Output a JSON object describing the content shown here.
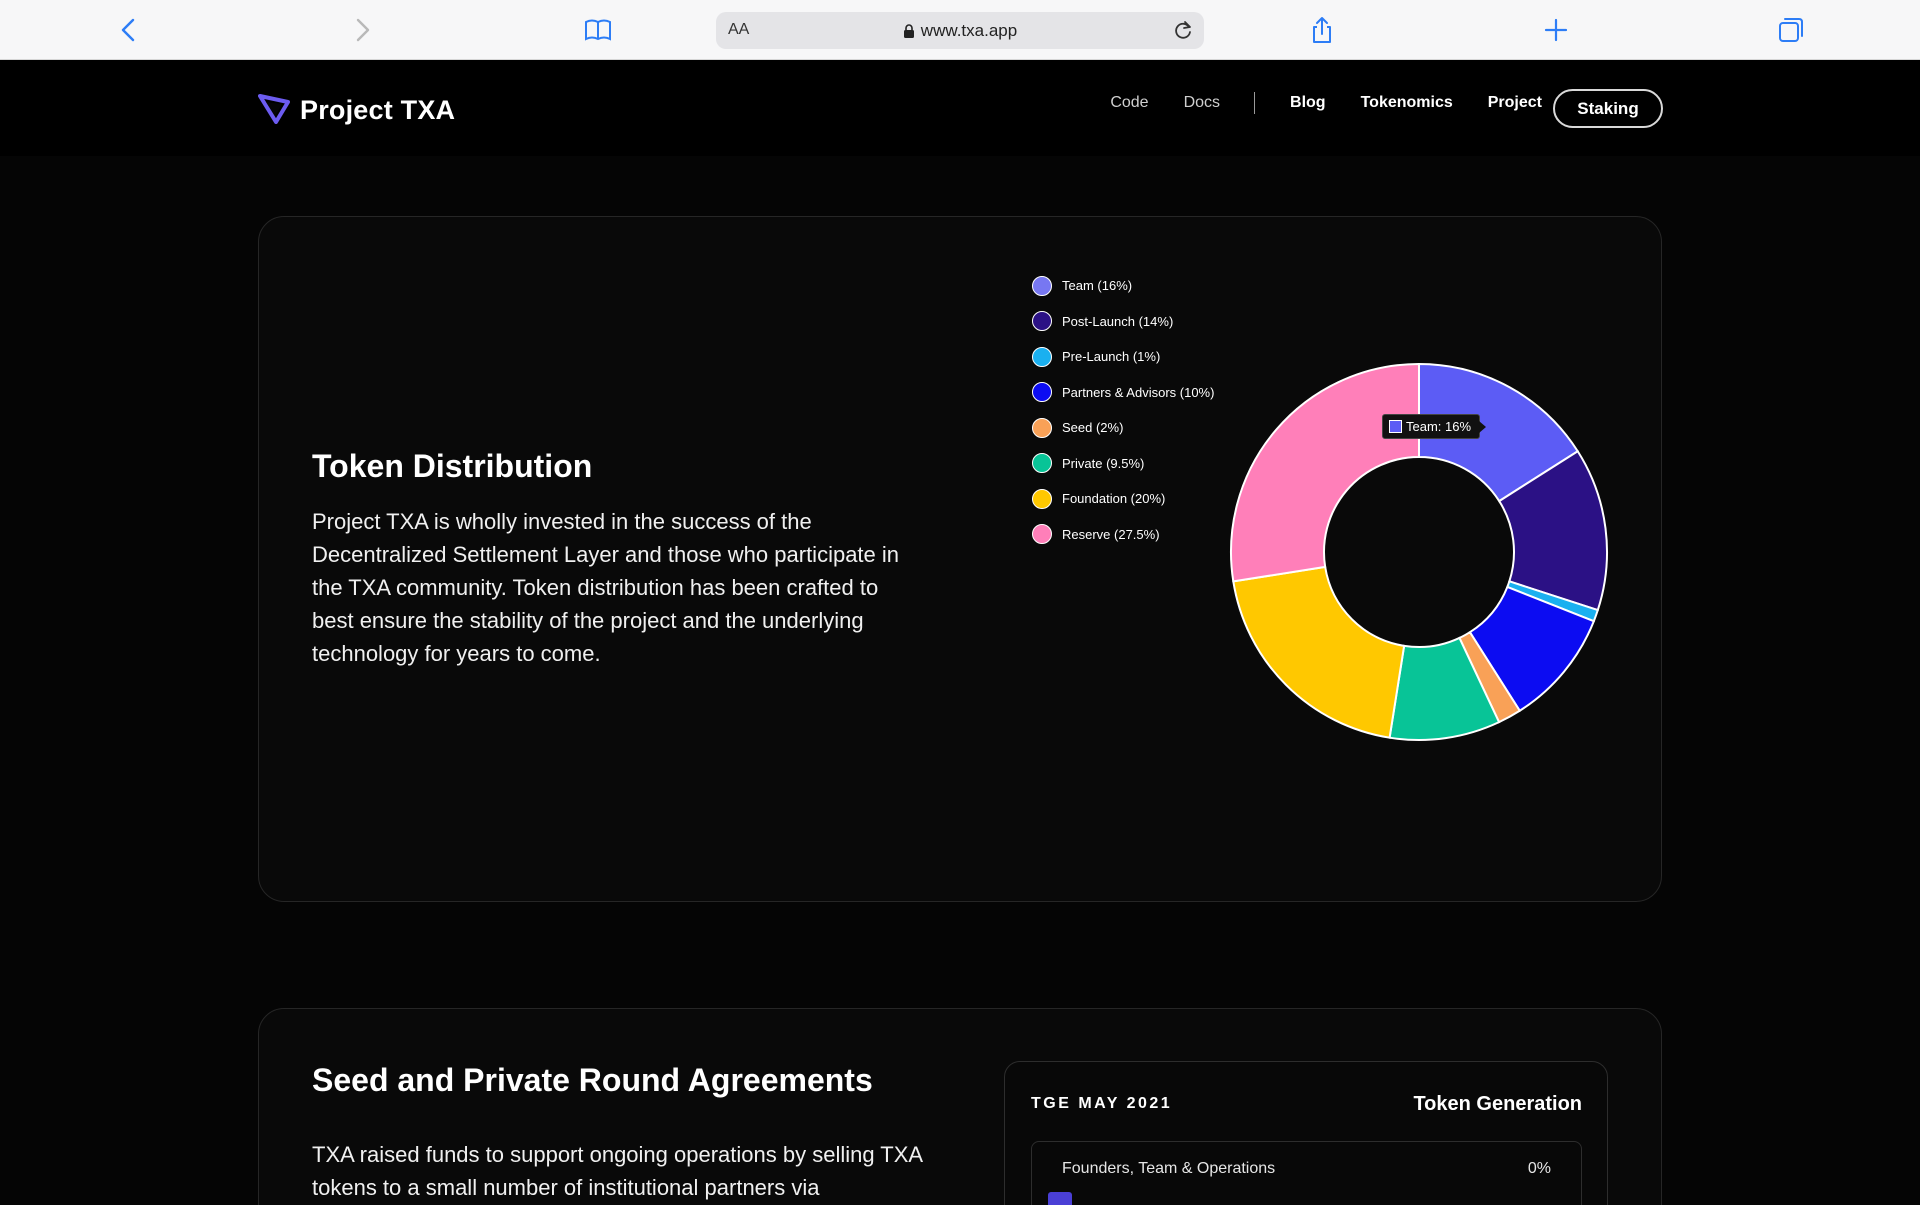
{
  "browser": {
    "aa_label": "AA",
    "url": "www.txa.app"
  },
  "nav": {
    "brand": "Project TXA",
    "links_light": [
      "Code",
      "Docs"
    ],
    "links_bold": [
      "Blog",
      "Tokenomics",
      "Project"
    ],
    "cta": "Staking"
  },
  "token_distribution": {
    "title": "Token Distribution",
    "body": "Project TXA is wholly invested in the success of the Decentralized Settlement Layer and those who participate in the TXA community. Token distribution has been crafted to best ensure the stability of the project and the underlying technology for years to come.",
    "legend": [
      {
        "label": "Team (16%)",
        "color": "#7777f2"
      },
      {
        "label": "Post-Launch (14%)",
        "color": "#2b1185"
      },
      {
        "label": "Pre-Launch (1%)",
        "color": "#1ab0f0"
      },
      {
        "label": "Partners & Advisors (10%)",
        "color": "#0c0cf2"
      },
      {
        "label": "Seed (2%)",
        "color": "#f9a157"
      },
      {
        "label": "Private (9.5%)",
        "color": "#08c497"
      },
      {
        "label": "Foundation (20%)",
        "color": "#ffc800"
      },
      {
        "label": "Reserve (27.5%)",
        "color": "#ff7fb9"
      }
    ],
    "tooltip": "Team: 16%"
  },
  "chart_data": {
    "type": "pie",
    "categories": [
      "Team",
      "Post-Launch",
      "Pre-Launch",
      "Partners & Advisors",
      "Seed",
      "Private",
      "Foundation",
      "Reserve"
    ],
    "values": [
      16,
      14,
      1,
      10,
      2,
      9.5,
      20,
      27.5
    ],
    "colors": [
      "#5c5cf5",
      "#2b1185",
      "#1ab0f0",
      "#0c0cf2",
      "#f9a157",
      "#08c497",
      "#ffc800",
      "#ff7fb9"
    ],
    "legend_position": "left"
  },
  "seed_private": {
    "title": "Seed and Private Round Agreements",
    "body": "TXA raised funds to support ongoing operations by selling TXA tokens to a small number of institutional partners via",
    "tge_label": "TGE MAY 2021",
    "tge_heading": "Token Generation",
    "rows": [
      {
        "label": "Founders, Team & Operations",
        "value": "0%"
      }
    ],
    "row_swatch_color": "#4a3fd6"
  }
}
